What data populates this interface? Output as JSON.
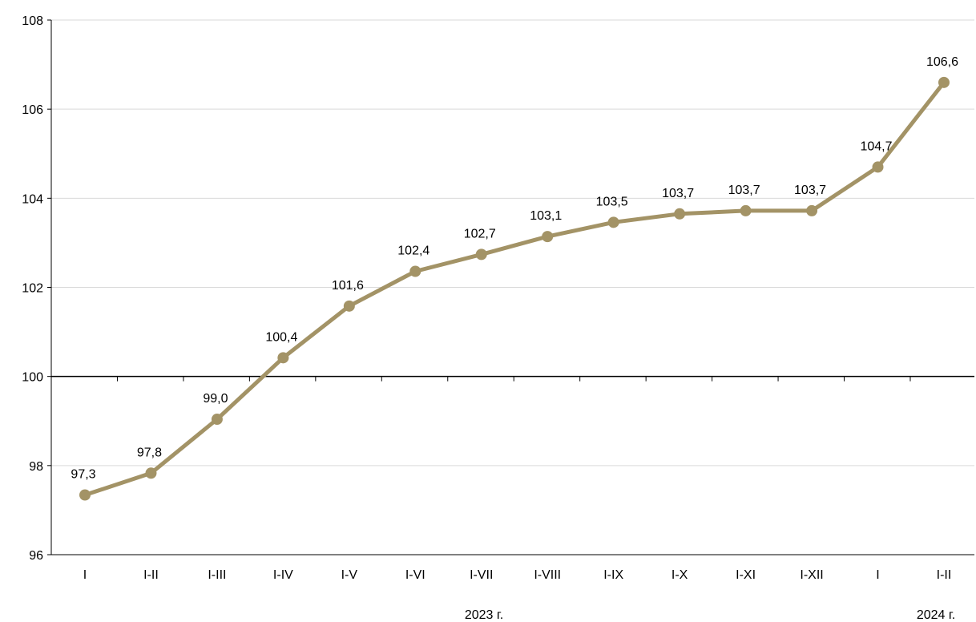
{
  "chart_data": {
    "type": "line",
    "categories": [
      "I",
      "I-II",
      "I-III",
      "I-IV",
      "I-V",
      "I-VI",
      "I-VII",
      "I-VIII",
      "I-IX",
      "I-X",
      "I-XI",
      "I-XII",
      "I",
      "I-II"
    ],
    "values": [
      97.34,
      97.83,
      99.04,
      100.42,
      101.58,
      102.36,
      102.74,
      103.14,
      103.46,
      103.65,
      103.72,
      103.72,
      104.7,
      106.6
    ],
    "data_labels": [
      "97,3",
      "97,8",
      "99,0",
      "100,4",
      "101,6",
      "102,4",
      "102,7",
      "103,1",
      "103,5",
      "103,7",
      "103,7",
      "103,7",
      "104,7",
      "106,6"
    ],
    "groups": [
      {
        "label": "2023 г.",
        "span": [
          0,
          11
        ]
      },
      {
        "label": "2024 г.",
        "span": [
          12,
          13
        ]
      }
    ],
    "ylim": [
      96,
      108
    ],
    "yticks": [
      96,
      98,
      100,
      102,
      104,
      106,
      108
    ],
    "ytick_labels": [
      "96",
      "98",
      "100",
      "102",
      "104",
      "106",
      "108"
    ],
    "baseline": 100,
    "grid": true,
    "title": "",
    "xlabel": "",
    "ylabel": "",
    "colors": {
      "series": "#a39366",
      "grid": "#d9d9d9",
      "axis": "#000000"
    }
  }
}
